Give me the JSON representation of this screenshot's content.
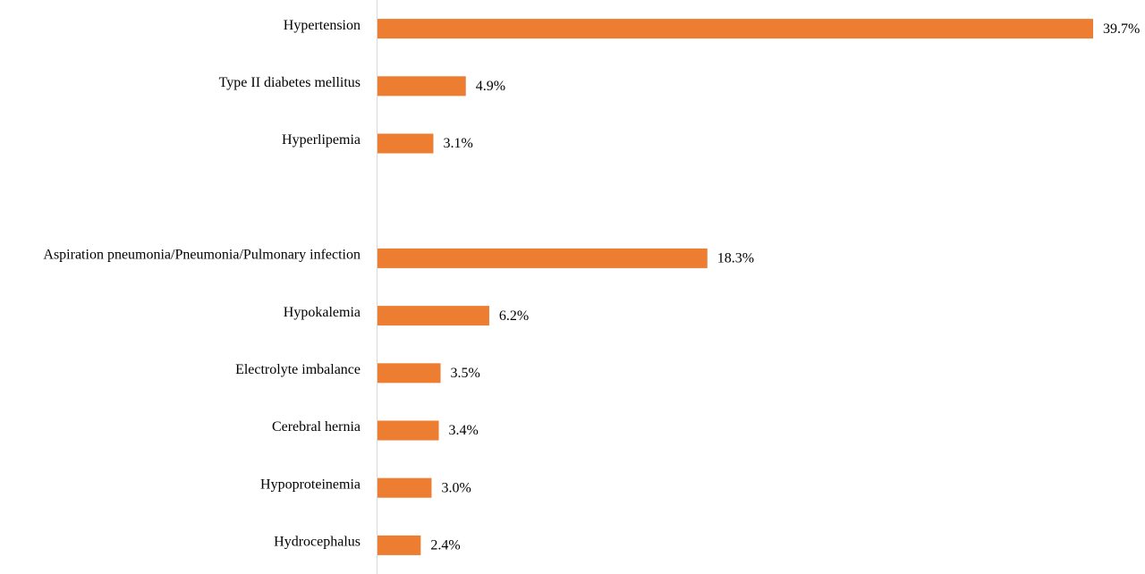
{
  "chart_data": {
    "type": "bar",
    "orientation": "horizontal",
    "categories": [
      "Hypertension",
      "Type II diabetes mellitus",
      "Hyperlipemia",
      "",
      "Aspiration pneumonia/Pneumonia/Pulmonary infection",
      "Hypokalemia",
      "Electrolyte imbalance",
      "Cerebral hernia",
      "Hypoproteinemia",
      "Hydrocephalus"
    ],
    "values": [
      39.7,
      4.9,
      3.1,
      null,
      18.3,
      6.2,
      3.5,
      3.4,
      3.0,
      2.4
    ],
    "value_labels": [
      "39.7%",
      "4.9%",
      "3.1%",
      "",
      "18.3%",
      "6.2%",
      "3.5%",
      "3.4%",
      "3.0%",
      "2.4%"
    ],
    "unit": "%",
    "title": "",
    "xlabel": "",
    "ylabel": "",
    "xlim": [
      0,
      39.7
    ],
    "grid": false,
    "legend": "none",
    "colors": {
      "bar": "#ED7D31",
      "axis": "#D9D9D9",
      "text": "#000000"
    }
  }
}
